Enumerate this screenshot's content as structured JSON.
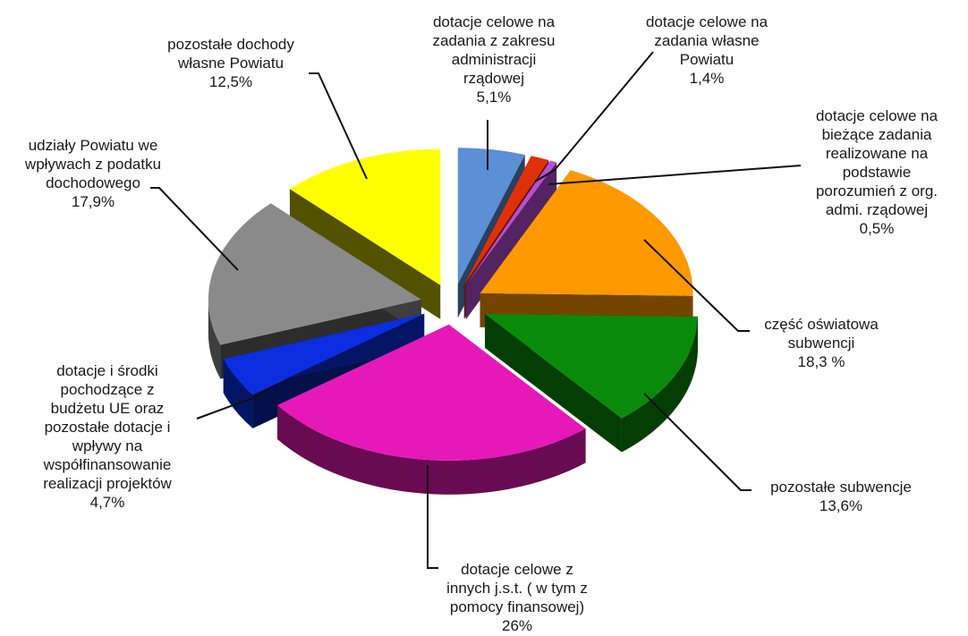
{
  "chart_data": {
    "type": "pie",
    "title": "",
    "slices": [
      {
        "label": [
          "dotacje celowe na",
          "zadania z zakresu",
          "administracji",
          "rządowej"
        ],
        "value_label": "5,1%",
        "value": 5.1,
        "color": "#5b8fd6"
      },
      {
        "label": [
          "dotacje celowe na",
          "zadania własne",
          "Powiatu"
        ],
        "value_label": "1,4%",
        "value": 1.4,
        "color": "#e0300a"
      },
      {
        "label": [
          "dotacje celowe na",
          "bieżące zadania",
          "realizowane na",
          "podstawie",
          "porozumień z org.",
          "admi. rządowej"
        ],
        "value_label": "0,5%",
        "value": 0.5,
        "color": "#b84fd8"
      },
      {
        "label": [
          "część oświatowa",
          "subwencji"
        ],
        "value_label": "18,3 %",
        "value": 18.3,
        "color": "#ff9900"
      },
      {
        "label": [
          "pozostałe subwencje"
        ],
        "value_label": "13,6%",
        "value": 13.6,
        "color": "#0a8a0a"
      },
      {
        "label": [
          "dotacje celowe z",
          "innych j.s.t. ( w tym z",
          "pomocy finansowej)"
        ],
        "value_label": "26%",
        "value": 26,
        "color": "#e619b8"
      },
      {
        "label": [
          "dotacje i środki",
          "pochodzące z",
          "budżetu UE oraz",
          "pozostałe dotacje i",
          "wpływy na",
          "współfinansowanie",
          "realizacji projektów"
        ],
        "value_label": "4,7%",
        "value": 4.7,
        "color": "#0a2ee0"
      },
      {
        "label": [
          "udziały Powiatu we",
          "wpływach z podatku",
          "dochodowego"
        ],
        "value_label": "17,9%",
        "value": 17.9,
        "color": "#8a8a8a"
      },
      {
        "label": [
          "pozostałe dochody",
          "własne Powiatu"
        ],
        "value_label": "12,5%",
        "value": 12.5,
        "color": "#ffff00"
      }
    ],
    "legend": "none",
    "style": "3d-exploded-pie"
  }
}
